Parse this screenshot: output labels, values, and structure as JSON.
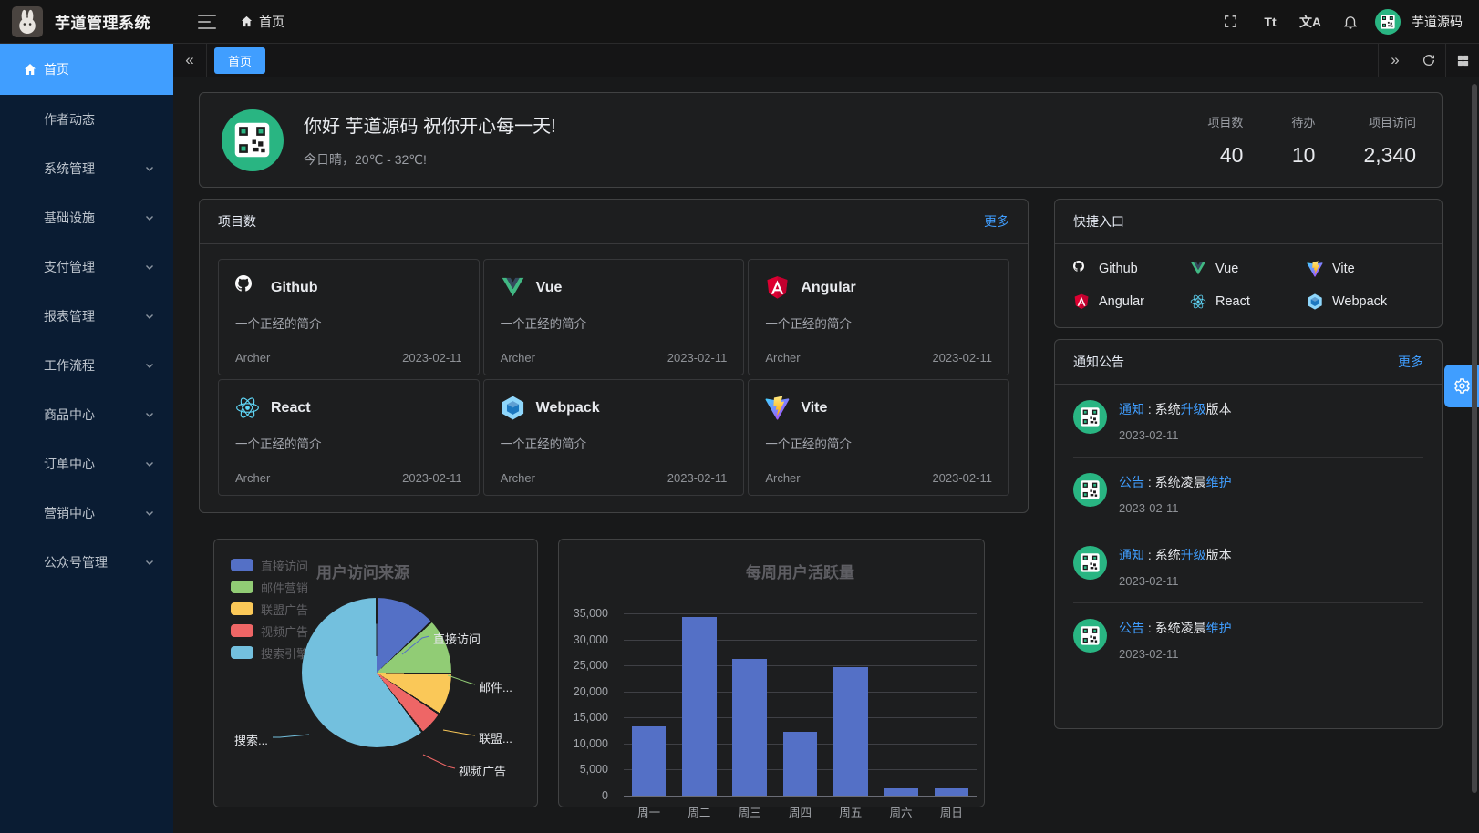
{
  "topbar": {
    "app_title": "芋道管理系统",
    "breadcrumb_home": "首页",
    "font_size_icon_text": "Tt",
    "language_icon_text": "文A",
    "user_name": "芋道源码"
  },
  "tabbar": {
    "collapse_left": "«",
    "collapse_right": "»",
    "active_tab": "首页"
  },
  "sidebar": {
    "items": [
      {
        "label": "首页",
        "active": true,
        "has_arrow": false
      },
      {
        "label": "作者动态",
        "active": false,
        "has_arrow": false
      },
      {
        "label": "系统管理",
        "active": false,
        "has_arrow": true
      },
      {
        "label": "基础设施",
        "active": false,
        "has_arrow": true
      },
      {
        "label": "支付管理",
        "active": false,
        "has_arrow": true
      },
      {
        "label": "报表管理",
        "active": false,
        "has_arrow": true
      },
      {
        "label": "工作流程",
        "active": false,
        "has_arrow": true
      },
      {
        "label": "商品中心",
        "active": false,
        "has_arrow": true
      },
      {
        "label": "订单中心",
        "active": false,
        "has_arrow": true
      },
      {
        "label": "营销中心",
        "active": false,
        "has_arrow": true
      },
      {
        "label": "公众号管理",
        "active": false,
        "has_arrow": true
      }
    ]
  },
  "greeting": {
    "title": "你好 芋道源码 祝你开心每一天!",
    "subtitle": "今日晴，20℃ - 32℃!",
    "stats": [
      {
        "label": "项目数",
        "value": "40"
      },
      {
        "label": "待办",
        "value": "10"
      },
      {
        "label": "项目访问",
        "value": "2,340"
      }
    ]
  },
  "projects": {
    "header": "项目数",
    "more": "更多",
    "items": [
      {
        "name": "Github",
        "icon": "github-icon",
        "desc": "一个正经的简介",
        "author": "Archer",
        "date": "2023-02-11"
      },
      {
        "name": "Vue",
        "icon": "vue-icon",
        "desc": "一个正经的简介",
        "author": "Archer",
        "date": "2023-02-11"
      },
      {
        "name": "Angular",
        "icon": "angular-icon",
        "desc": "一个正经的简介",
        "author": "Archer",
        "date": "2023-02-11"
      },
      {
        "name": "React",
        "icon": "react-icon",
        "desc": "一个正经的简介",
        "author": "Archer",
        "date": "2023-02-11"
      },
      {
        "name": "Webpack",
        "icon": "webpack-icon",
        "desc": "一个正经的简介",
        "author": "Archer",
        "date": "2023-02-11"
      },
      {
        "name": "Vite",
        "icon": "vite-icon",
        "desc": "一个正经的简介",
        "author": "Archer",
        "date": "2023-02-11"
      }
    ]
  },
  "quick": {
    "header": "快捷入口",
    "items": [
      {
        "label": "Github",
        "icon": "github-icon"
      },
      {
        "label": "Vue",
        "icon": "vue-icon"
      },
      {
        "label": "Vite",
        "icon": "vite-icon"
      },
      {
        "label": "Angular",
        "icon": "angular-icon"
      },
      {
        "label": "React",
        "icon": "react-icon"
      },
      {
        "label": "Webpack",
        "icon": "webpack-icon"
      }
    ]
  },
  "notices": {
    "header": "通知公告",
    "more": "更多",
    "items": [
      {
        "tag": "通知",
        "mid": " : 系统",
        "highlight": "升级",
        "suffix": "版本",
        "date": "2023-02-11"
      },
      {
        "tag": "公告",
        "mid": " : 系统凌晨",
        "highlight": "维护",
        "suffix": "",
        "date": "2023-02-11"
      },
      {
        "tag": "通知",
        "mid": " : 系统",
        "highlight": "升级",
        "suffix": "版本",
        "date": "2023-02-11"
      },
      {
        "tag": "公告",
        "mid": " : 系统凌晨",
        "highlight": "维护",
        "suffix": "",
        "date": "2023-02-11"
      }
    ]
  },
  "chart_data": [
    {
      "type": "pie",
      "title": "用户访问来源",
      "legend_position": "left",
      "labels": [
        "直接访问",
        "邮件营销",
        "联盟广告",
        "视频广告",
        "搜索引擎"
      ],
      "values": [
        335,
        310,
        234,
        135,
        1548
      ],
      "callout_labels": [
        "直接访问",
        "邮件...",
        "联盟...",
        "视频广告",
        "搜索..."
      ],
      "colors": [
        "#5470c6",
        "#91cc75",
        "#fac858",
        "#ee6666",
        "#73c0de"
      ]
    },
    {
      "type": "bar",
      "title": "每周用户活跃量",
      "categories": [
        "周一",
        "周二",
        "周三",
        "周四",
        "周五",
        "周六",
        "周日"
      ],
      "values": [
        13253,
        34235,
        26321,
        12340,
        24643,
        1322,
        1324
      ],
      "ylim": [
        0,
        35000
      ],
      "ytick_step": 5000,
      "bar_color": "#5470c6",
      "grid": true,
      "legend_position": "none"
    }
  ],
  "accent_color": "#409eff",
  "sidebar_color": "#0a1c33",
  "avatar_green": "#29b582"
}
